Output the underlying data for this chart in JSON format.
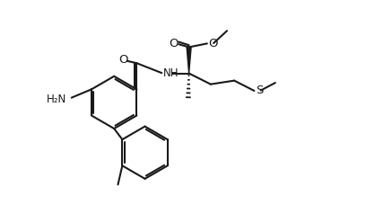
{
  "bg": "#ffffff",
  "lc": "#1a1a1a",
  "lw": 1.5,
  "fs": 8.5,
  "figsize": [
    4.08,
    2.48
  ],
  "dpi": 100,
  "xlim": [
    -0.5,
    8.5
  ],
  "ylim": [
    -0.3,
    5.8
  ]
}
